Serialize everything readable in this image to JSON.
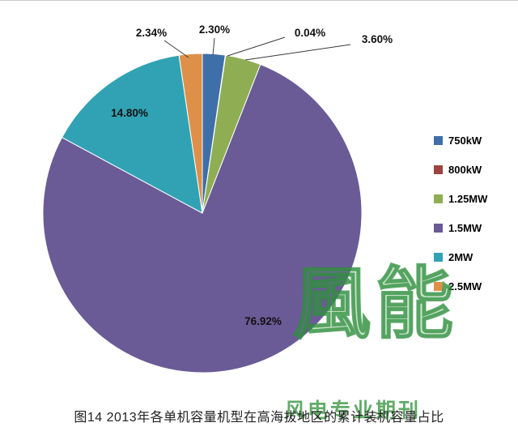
{
  "figure": {
    "caption": "图14 2013年各单机容量机型在高海拔地区的累计装机容量占比"
  },
  "watermark": {
    "main": "風能",
    "sub": "风电专业期刊"
  },
  "chart_data": {
    "type": "pie",
    "title": "",
    "categories": [
      "750kW",
      "800kW",
      "1.25MW",
      "1.5MW",
      "2MW",
      "2.5MW"
    ],
    "values": [
      2.3,
      0.04,
      3.6,
      76.92,
      14.8,
      2.34
    ],
    "labels": [
      "2.30%",
      "0.04%",
      "3.60%",
      "76.92%",
      "14.80%",
      "2.34%"
    ],
    "colors": [
      "#3f6fa8",
      "#9e4440",
      "#8fae54",
      "#6a5b96",
      "#31a2b4",
      "#de9048"
    ],
    "start_angle": 0,
    "direction": "clockwise",
    "legend_position": "right",
    "legend_entries": [
      "750kW",
      "800kW",
      "1.25MW",
      "1.5MW",
      "2MW",
      "2.5MW"
    ]
  }
}
